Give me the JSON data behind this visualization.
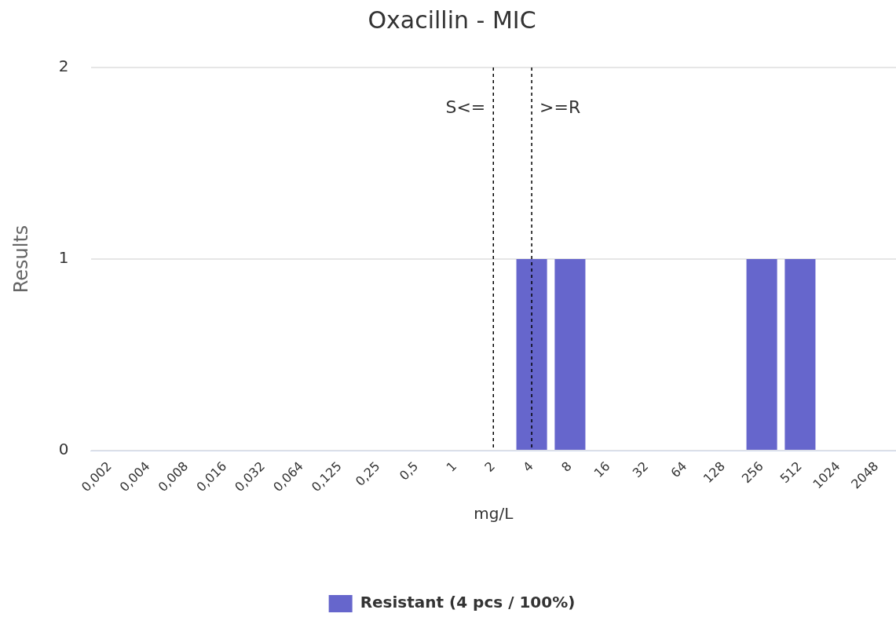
{
  "chart_data": {
    "type": "bar",
    "title": "Oxacillin - MIC",
    "xlabel": "mg/L",
    "ylabel": "Results",
    "categories": [
      "0,002",
      "0,004",
      "0,008",
      "0,016",
      "0,032",
      "0,064",
      "0,125",
      "0,25",
      "0,5",
      "1",
      "2",
      "4",
      "8",
      "16",
      "32",
      "64",
      "128",
      "256",
      "512",
      "1024",
      "2048"
    ],
    "series": [
      {
        "name": "Resistant (4 pcs / 100%)",
        "color": "#6666cc",
        "values": [
          0,
          0,
          0,
          0,
          0,
          0,
          0,
          0,
          0,
          0,
          0,
          1,
          1,
          0,
          0,
          0,
          0,
          1,
          1,
          0,
          0
        ]
      }
    ],
    "ylim": [
      0,
      2
    ],
    "yticks": [
      0,
      1,
      2
    ],
    "grid": "y",
    "legend": "bottom",
    "ref_lines": [
      {
        "axis": "x",
        "value": "2",
        "label": "S<=",
        "line_style": "dashed",
        "color": "#000000"
      },
      {
        "axis": "x",
        "value": "4",
        "label": ">=R",
        "line_style": "dashed",
        "color": "#000000"
      }
    ]
  }
}
